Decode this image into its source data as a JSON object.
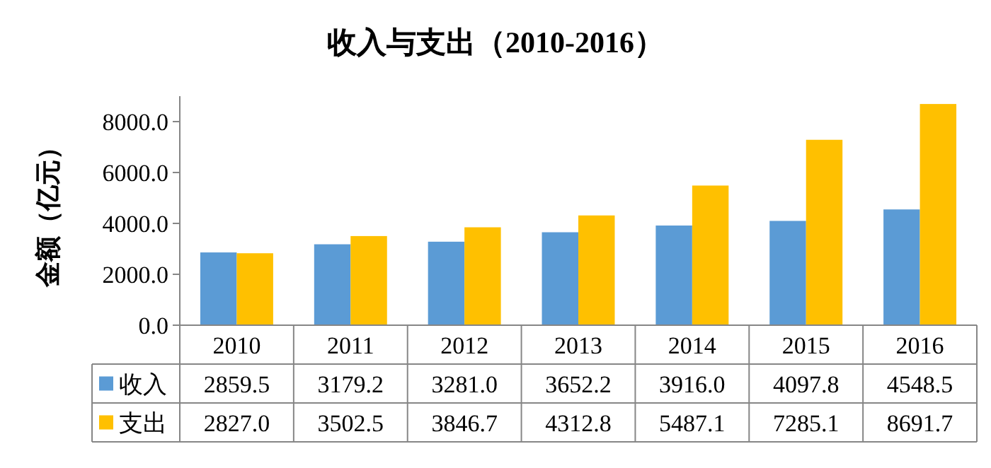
{
  "chart_data": {
    "type": "bar",
    "title": "收入与支出（2010-2016）",
    "ylabel": "金额（亿元）",
    "categories": [
      "2010",
      "2011",
      "2012",
      "2013",
      "2014",
      "2015",
      "2016"
    ],
    "series": [
      {
        "name": "收入",
        "color": "#5b9bd5",
        "values": [
          2859.5,
          3179.2,
          3281,
          3652.2,
          3916,
          4097.8,
          4548.5
        ],
        "value_labels": [
          "2859.5",
          "3179.2",
          "3281.0",
          "3652.2",
          "3916.0",
          "4097.8",
          "4548.5"
        ]
      },
      {
        "name": "支出",
        "color": "#ffc000",
        "values": [
          2827,
          3502.5,
          3846.7,
          4312.8,
          5487.1,
          7285.1,
          8691.7
        ],
        "value_labels": [
          "2827.0",
          "3502.5",
          "3846.7",
          "4312.8",
          "5487.1",
          "7285.1",
          "8691.7"
        ]
      }
    ],
    "ylim": [
      0,
      9000
    ],
    "yticks": [
      {
        "value": 0,
        "label": "0.0"
      },
      {
        "value": 2000,
        "label": "2000.0"
      },
      {
        "value": 4000,
        "label": "4000.0"
      },
      {
        "value": 6000,
        "label": "6000.0"
      },
      {
        "value": 8000,
        "label": "8000.0"
      }
    ],
    "legend": "bottom",
    "grid": false
  }
}
